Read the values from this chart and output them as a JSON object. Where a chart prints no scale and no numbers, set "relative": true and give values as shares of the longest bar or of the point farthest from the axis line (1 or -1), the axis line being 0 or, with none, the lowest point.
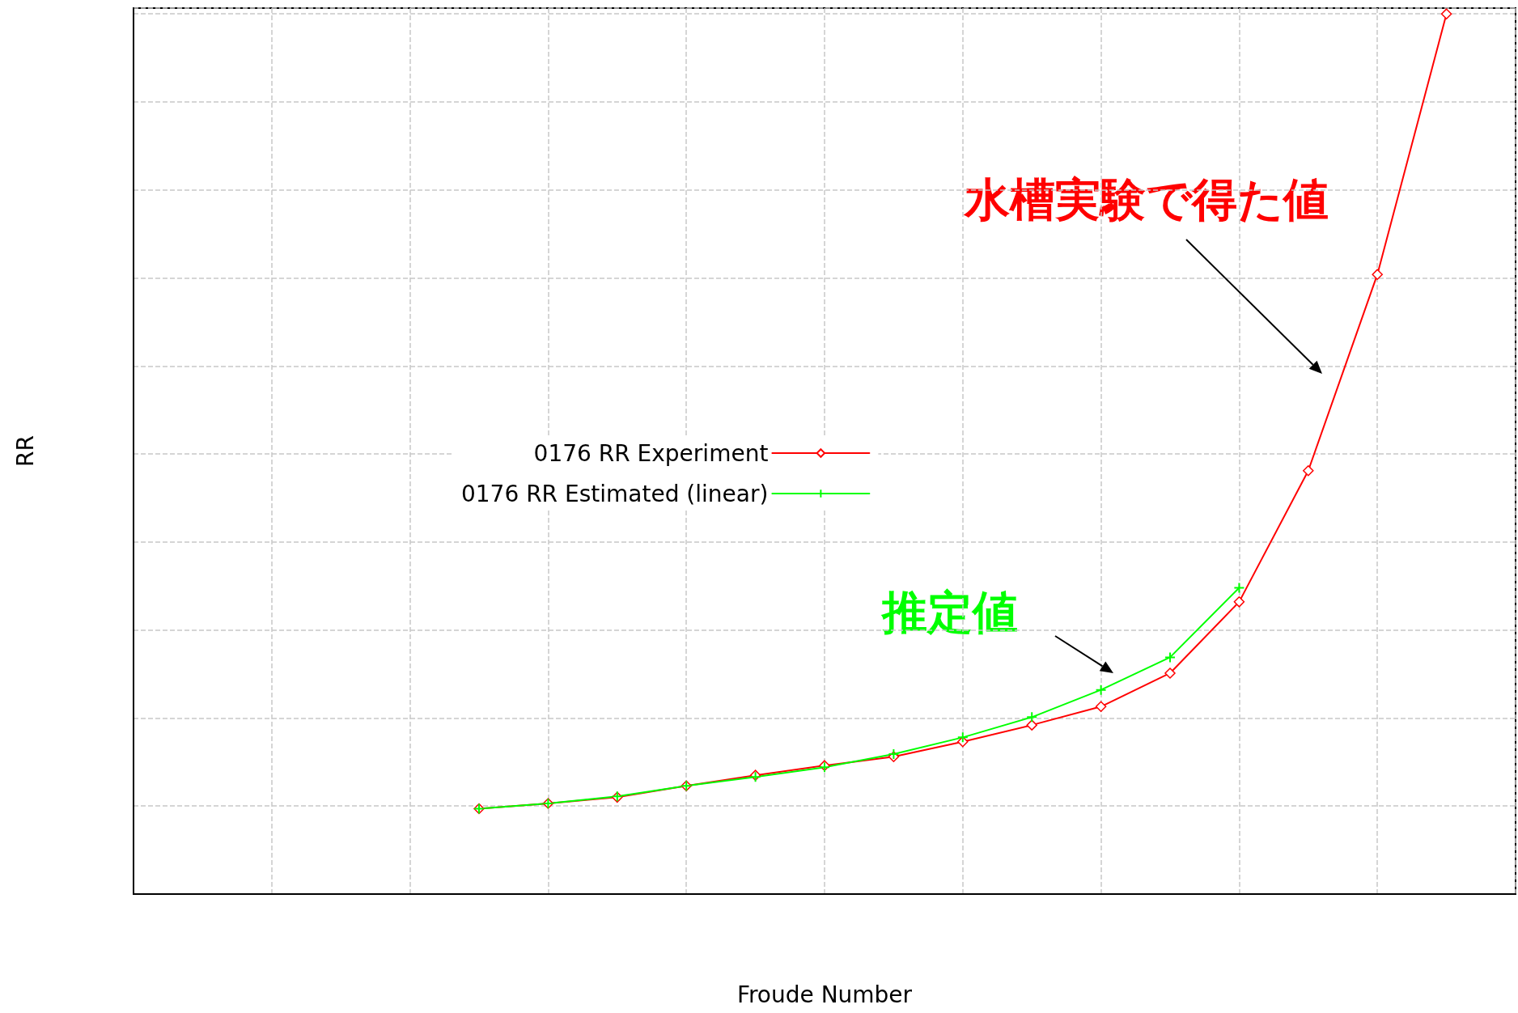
{
  "chart_data": {
    "type": "line",
    "relative": true,
    "xlabel": "Froude Number",
    "ylabel": "RR",
    "categories": [
      null,
      null,
      null,
      null,
      null,
      null,
      null,
      null,
      null,
      null,
      null,
      null,
      null,
      null,
      null,
      null,
      null,
      null,
      null,
      null,
      null
    ],
    "series": [
      {
        "name": "0176 RR Experiment",
        "color": "#ff0000",
        "marker": "diamond",
        "values": [
          null,
          null,
          null,
          null,
          null,
          0.097,
          0.103,
          0.11,
          0.123,
          0.135,
          0.146,
          0.156,
          0.173,
          0.192,
          0.213,
          0.251,
          0.332,
          0.481,
          0.704,
          1,
          null
        ]
      },
      {
        "name": "0176 RR Estimated (linear)",
        "color": "#00ff00",
        "marker": "cross",
        "values": [
          null,
          null,
          null,
          null,
          null,
          0.097,
          0.103,
          0.111,
          0.123,
          0.133,
          0.144,
          0.159,
          0.178,
          0.201,
          0.232,
          0.269,
          0.348,
          null,
          null,
          null,
          null
        ]
      }
    ],
    "annotations": [
      "水槽実験で得た値",
      "推定値"
    ],
    "grid": true,
    "legend": "left",
    "line_style": "solid"
  }
}
